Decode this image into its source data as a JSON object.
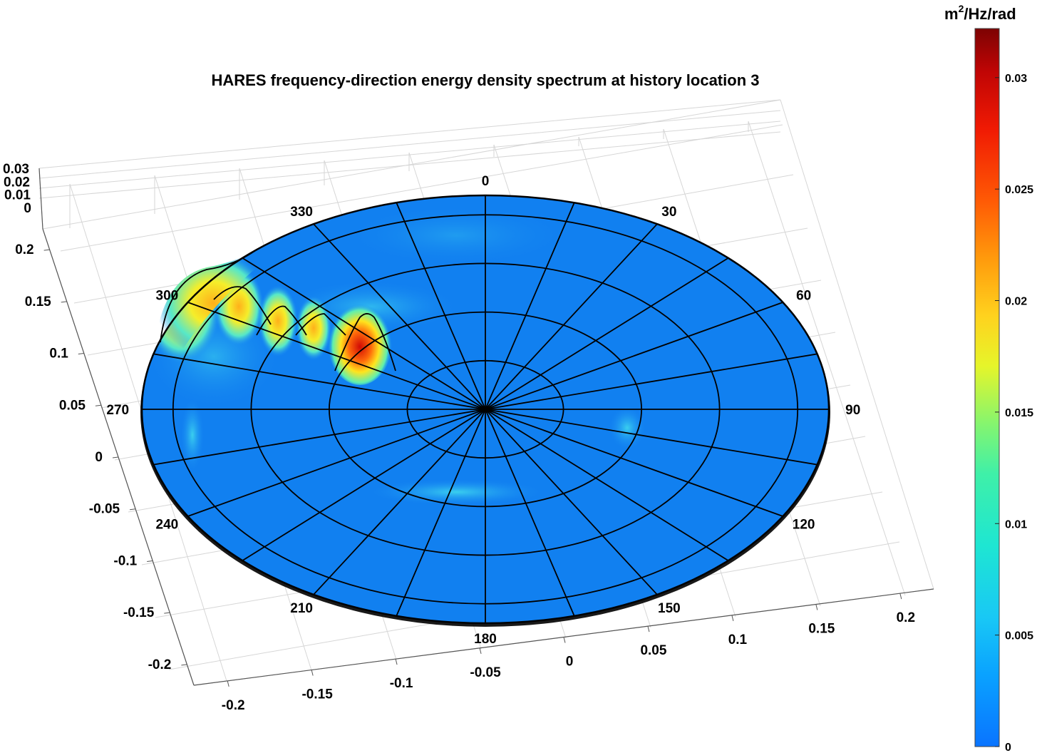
{
  "chart_data": {
    "type": "surface",
    "title": "HARES frequency-direction energy density spectrum at history location 3",
    "colorbar": {
      "label": "m²/Hz/rad",
      "label_base": "m",
      "label_sup": "2",
      "label_rest": "/Hz/rad",
      "ticks": [
        "0",
        "0.005",
        "0.01",
        "0.015",
        "0.02",
        "0.025",
        "0.03"
      ],
      "tick_values": [
        0,
        0.005,
        0.01,
        0.015,
        0.02,
        0.025,
        0.03
      ],
      "range": [
        0,
        0.0322
      ],
      "colormap": "jet",
      "location": "right"
    },
    "x_axis": {
      "ticks": [
        "-0.2",
        "-0.15",
        "-0.1",
        "-0.05",
        "0",
        "0.05",
        "0.1",
        "0.15",
        "0.2"
      ],
      "range": [
        -0.22,
        0.22
      ]
    },
    "y_axis": {
      "ticks": [
        "-0.2",
        "-0.15",
        "-0.1",
        "-0.05",
        "0",
        "0.05",
        "0.1",
        "0.15",
        "0.2"
      ],
      "range": [
        -0.22,
        0.22
      ]
    },
    "z_axis": {
      "ticks": [
        "0",
        "0.01",
        "0.02",
        "0.03"
      ],
      "range": [
        0,
        0.03
      ]
    },
    "polar_grid": {
      "direction_labels": [
        "0",
        "30",
        "60",
        "90",
        "120",
        "150",
        "180",
        "210",
        "240",
        "270",
        "300",
        "330"
      ],
      "direction_spokes_deg": 15,
      "frequency_rings": [
        0.05,
        0.1,
        0.15,
        0.2
      ]
    },
    "peaks": [
      {
        "direction_deg": 327,
        "frequency": 0.085,
        "value": 0.032
      },
      {
        "direction_deg": 310,
        "frequency": 0.125,
        "value": 0.02
      },
      {
        "direction_deg": 312,
        "frequency": 0.145,
        "value": 0.017
      },
      {
        "direction_deg": 314,
        "frequency": 0.168,
        "value": 0.016
      },
      {
        "direction_deg": 299,
        "frequency": 0.19,
        "value": 0.015
      },
      {
        "direction_deg": 292,
        "frequency": 0.205,
        "value": 0.014
      }
    ],
    "background_value": 0.002,
    "grid": true
  }
}
